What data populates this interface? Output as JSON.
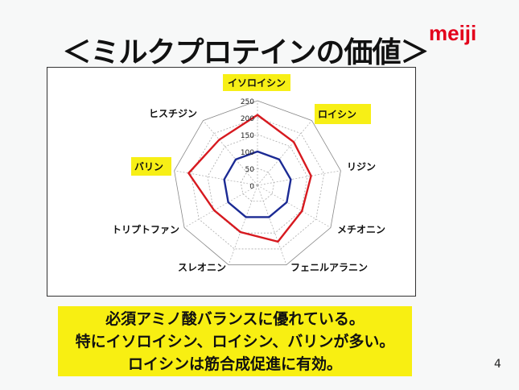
{
  "slide": {
    "title": "＜ミルクプロテインの価値＞",
    "logo": "meiji",
    "page_number": "4",
    "note_lines": [
      "必須アミノ酸バランスに優れている。",
      "特にイソロイシン、ロイシン、バリンが多い。",
      "ロイシンは筋合成促進に有効。"
    ]
  },
  "chart_data": {
    "type": "radar",
    "categories": [
      "イソロイシン",
      "ロイシン",
      "リジン",
      "メチオニン",
      "フェニルアラニン",
      "スレオニン",
      "トリプトファン",
      "バリン",
      "ヒスチジン"
    ],
    "highlighted_categories": [
      "イソロイシン",
      "ロイシン",
      "バリン"
    ],
    "highlight_color": "#f7ef16",
    "rlim": [
      0,
      250
    ],
    "ticks": [
      "0",
      "50",
      "100",
      "150",
      "200",
      "250"
    ],
    "grid": true,
    "series": [
      {
        "color": "#d7191f",
        "values": [
          208,
          167,
          161,
          152,
          177,
          147,
          148,
          207,
          176
        ]
      },
      {
        "color": "#1b2a94",
        "values": [
          100,
          100,
          100,
          100,
          100,
          100,
          100,
          100,
          100
        ]
      }
    ]
  }
}
